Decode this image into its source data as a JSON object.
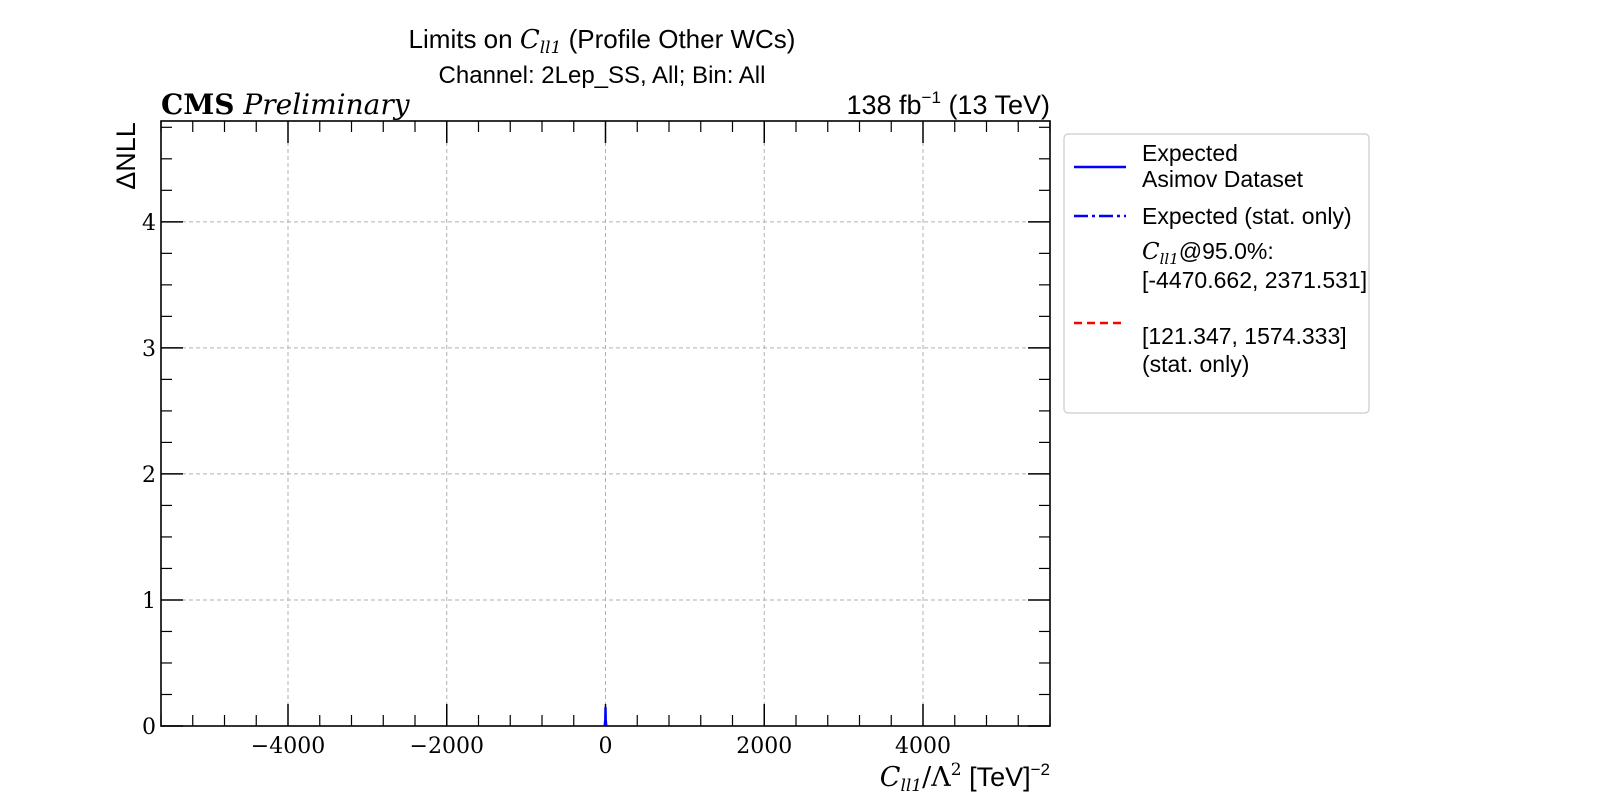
{
  "chart_data": {
    "type": "line",
    "title": {
      "line1_prefix": "Limits on ",
      "line1_symbol": "C",
      "line1_subscript": "ll1",
      "line1_suffix": " (Profile Other WCs)",
      "line2": "Channel: 2Lep_SS, All; Bin: All"
    },
    "header": {
      "experiment": "CMS",
      "status": "Preliminary",
      "lumi_prefix": "138 fb",
      "lumi_exponent": "−1",
      "lumi_suffix": " (13 TeV)"
    },
    "xlabel": {
      "symbol": "C",
      "subscript": "ll1",
      "mid": "/Λ",
      "mid_exponent": "2",
      "unit": " [TeV]",
      "unit_exponent": "−2"
    },
    "ylabel": "ΔNLL",
    "xlim": [
      -5600,
      5600
    ],
    "ylim": [
      0,
      4.8
    ],
    "x_ticks": [
      -4000,
      -2000,
      0,
      2000,
      4000
    ],
    "x_tick_labels": [
      "−4000",
      "−2000",
      "0",
      "2000",
      "4000"
    ],
    "x_minor_step": 400,
    "y_ticks": [
      0,
      1,
      2,
      3,
      4
    ],
    "y_tick_labels": [
      "0",
      "1",
      "2",
      "3",
      "4"
    ],
    "y_minor_step": 0.25,
    "grid": true,
    "legend_placement": "outside-right",
    "series": [
      {
        "key": "expected",
        "color": "#0000ff",
        "style": "solid",
        "x": [
          -10,
          -3,
          0,
          3,
          10
        ],
        "y": [
          0.0,
          0.05,
          0.15,
          0.05,
          0.0
        ]
      },
      {
        "key": "expected_stat",
        "color": "#0000ff",
        "style": "dashdot",
        "x": [],
        "y": []
      },
      {
        "key": "observed_stat",
        "color": "#ff0000",
        "style": "dashed",
        "x": [],
        "y": []
      }
    ],
    "legend": [
      {
        "key": "expected",
        "line1": "Expected",
        "line2": "Asimov Dataset"
      },
      {
        "key": "expected_stat",
        "line1": "Expected (stat. only)"
      },
      {
        "key": "limits",
        "symbol": "C",
        "subscript": "ll1",
        "suffix": "@95.0%:",
        "interval": "[-4470.662, 2371.531]"
      },
      {
        "key": "observed_stat",
        "interval": "[121.347, 1574.333]",
        "note": "(stat. only)"
      }
    ]
  }
}
